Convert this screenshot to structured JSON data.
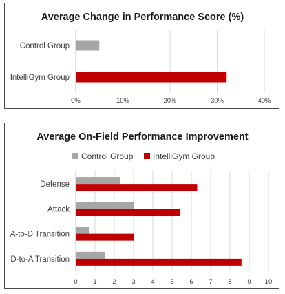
{
  "chart_data": [
    {
      "type": "bar",
      "orientation": "horizontal",
      "title": "Average Change in Performance Score (%)",
      "categories": [
        "Control Group",
        "IntelliGym Group"
      ],
      "values": [
        5,
        32
      ],
      "colors": [
        "#a6a6a6",
        "#c00000"
      ],
      "xlim": [
        0,
        40
      ],
      "ticks": [
        "0%",
        "10%",
        "20%",
        "30%",
        "40%"
      ],
      "tick_values": [
        0,
        10,
        20,
        30,
        40
      ],
      "grid": true,
      "legend": "none"
    },
    {
      "type": "bar",
      "orientation": "horizontal",
      "title": "Average On-Field Performance Improvement",
      "categories": [
        "Defense",
        "Attack",
        "A-to-D Transition",
        "D-to-A Transition"
      ],
      "series": [
        {
          "name": "Control Group",
          "color": "#a6a6a6",
          "values": [
            2.3,
            3.0,
            0.7,
            1.5
          ]
        },
        {
          "name": "IntelliGym Group",
          "color": "#c00000",
          "values": [
            6.3,
            5.4,
            3.0,
            8.6
          ]
        }
      ],
      "xlim": [
        0,
        10
      ],
      "ticks": [
        "0",
        "1",
        "2",
        "3",
        "4",
        "5",
        "6",
        "7",
        "8",
        "9",
        "10"
      ],
      "tick_values": [
        0,
        1,
        2,
        3,
        4,
        5,
        6,
        7,
        8,
        9,
        10
      ],
      "grid": true,
      "legend": "top"
    }
  ]
}
